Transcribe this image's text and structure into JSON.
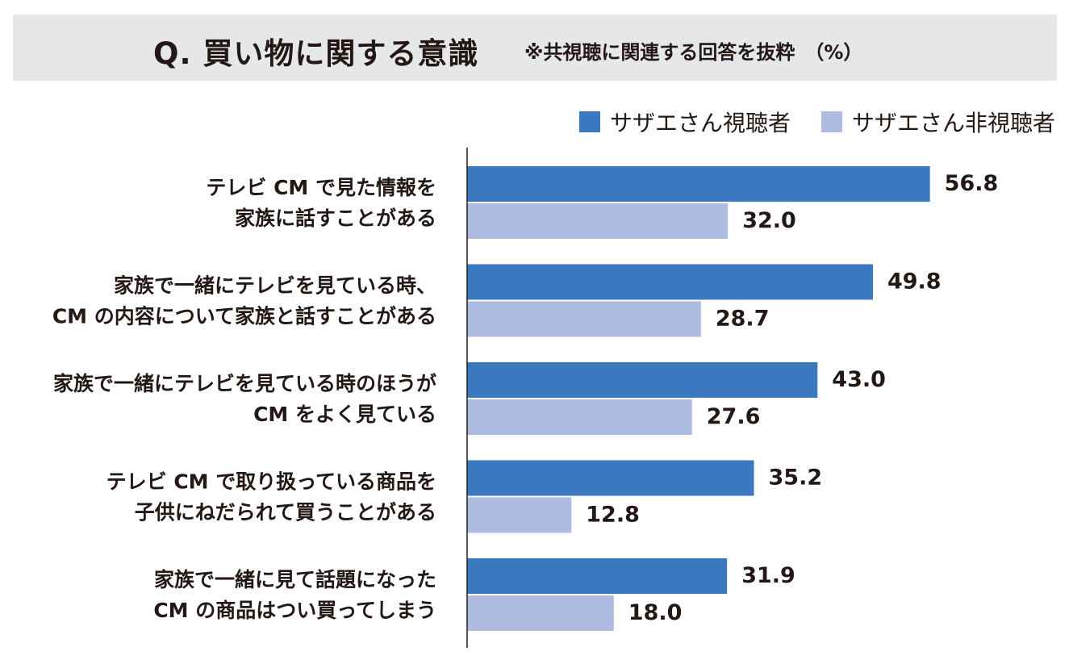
{
  "header": {
    "title": "Q. 買い物に関する意識",
    "subtitle": "※共視聴に関連する回答を抜粋　（%）"
  },
  "colors": {
    "viewer": "#3a78c0",
    "non_viewer": "#aebbe3",
    "header_band": "#e6e7e8",
    "text": "#231815"
  },
  "chart_data": {
    "type": "bar",
    "orientation": "horizontal",
    "title": "Q. 買い物に関する意識",
    "unit": "%",
    "grid": false,
    "legend_position": "top-right",
    "categories": [
      [
        "テレビ CM で見た情報を",
        "家族に話すことがある"
      ],
      [
        "家族で一緒にテレビを見ている時、",
        "CM の内容について家族と話すことがある"
      ],
      [
        "家族で一緒にテレビを見ている時のほうが",
        "CM をよく見ている"
      ],
      [
        "テレビ CM で取り扱っている商品を",
        "子供にねだられて買うことがある"
      ],
      [
        "家族で一緒に見て話題になった",
        "CM の商品はつい買ってしまう"
      ]
    ],
    "series": [
      {
        "name": "サザエさん視聴者",
        "values": [
          56.8,
          49.8,
          43.0,
          35.2,
          31.9
        ],
        "labels": [
          "56.8",
          "49.8",
          "43.0",
          "35.2",
          "31.9"
        ]
      },
      {
        "name": "サザエさん非視聴者",
        "values": [
          32.0,
          28.7,
          27.6,
          12.8,
          18.0
        ],
        "labels": [
          "32.0",
          "28.7",
          "27.6",
          "12.8",
          "18.0"
        ]
      }
    ]
  }
}
